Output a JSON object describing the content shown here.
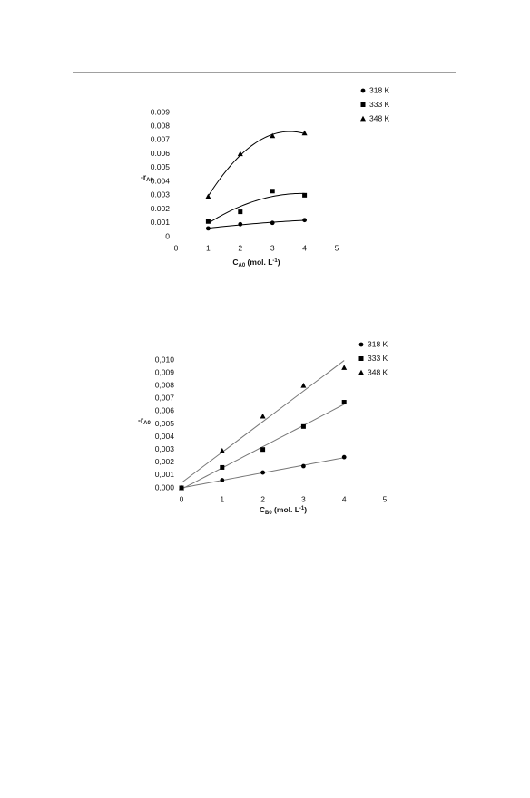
{
  "chart_data": [
    {
      "type": "scatter",
      "trendline": "poly2",
      "trend_color": "#000000",
      "ylabel": {
        "main": "-r",
        "sub": "A0"
      },
      "xlabel": {
        "main": "C",
        "sub": "A0",
        "rest": " (mol. L",
        "sup": "-1",
        "end": ")"
      },
      "x": [
        1,
        2,
        3,
        4
      ],
      "series": [
        {
          "name": "318 K",
          "marker": "circle",
          "color": "#000000",
          "values": [
            0.0006,
            0.0009,
            0.001,
            0.0012
          ]
        },
        {
          "name": "333 K",
          "marker": "square",
          "color": "#000000",
          "values": [
            0.0011,
            0.0018,
            0.0033,
            0.003
          ]
        },
        {
          "name": "348 K",
          "marker": "triangle",
          "color": "#000000",
          "values": [
            0.0029,
            0.006,
            0.0073,
            0.0075
          ]
        }
      ],
      "xlim": [
        0,
        5
      ],
      "xticks": [
        0,
        1,
        2,
        3,
        4,
        5
      ],
      "ylim": [
        0,
        0.009
      ],
      "yticks": [
        0,
        0.001,
        0.002,
        0.003,
        0.004,
        0.005,
        0.006,
        0.007,
        0.008,
        0.009
      ]
    },
    {
      "type": "scatter",
      "trendline": "linear",
      "trend_color": "#777777",
      "ylabel": {
        "main": "-r",
        "sub": "A0"
      },
      "xlabel": {
        "main": "C",
        "sub": "B0",
        "rest": " (mol. L",
        "sup": "-1",
        "end": ")"
      },
      "x": [
        0,
        1,
        2,
        3,
        4
      ],
      "series": [
        {
          "name": "318 K",
          "marker": "circle",
          "color": "#000000",
          "values": [
            0,
            0.0006,
            0.0012,
            0.0017,
            0.0024
          ]
        },
        {
          "name": "333 K",
          "marker": "square",
          "color": "#000000",
          "values": [
            0,
            0.0016,
            0.003,
            0.0048,
            0.0067
          ]
        },
        {
          "name": "348 K",
          "marker": "triangle",
          "color": "#000000",
          "values": [
            0,
            0.0029,
            0.0056,
            0.008,
            0.0094
          ]
        }
      ],
      "xlim": [
        0,
        5
      ],
      "xticks": [
        0,
        1,
        2,
        3,
        4,
        5
      ],
      "ylim": [
        0,
        0.01
      ],
      "yticks": [
        {
          "value": 0,
          "label": "0,000"
        },
        {
          "value": 0.001,
          "label": "0,001"
        },
        {
          "value": 0.002,
          "label": "0,002"
        },
        {
          "value": 0.003,
          "label": "0,003"
        },
        {
          "value": 0.004,
          "label": "0,004"
        },
        {
          "value": 0.005,
          "label": "0,005"
        },
        {
          "value": 0.006,
          "label": "0,006"
        },
        {
          "value": 0.007,
          "label": "0,007"
        },
        {
          "value": 0.008,
          "label": "0,008"
        },
        {
          "value": 0.009,
          "label": "0,009"
        },
        {
          "value": 0.01,
          "label": "0,010"
        }
      ]
    }
  ]
}
